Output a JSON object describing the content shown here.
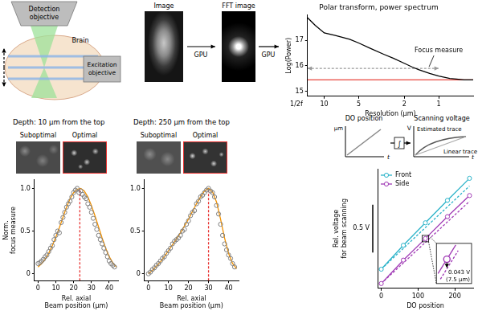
{
  "schematic": {
    "labels": [
      "Detection objective",
      "Brain",
      "Excitation objective"
    ]
  },
  "pipeline": {
    "image_titles": [
      "Image",
      "FFT image"
    ],
    "arrows": [
      "GPU",
      "GPU"
    ]
  },
  "sketch": {
    "left": {
      "title": "DO position",
      "y_label": "µm",
      "x_label": "t"
    },
    "operator": "∫",
    "right": {
      "title": "Scanning voltage",
      "y_label": "V",
      "x_label": "t",
      "traces": [
        "Estimated trace",
        "Linear trace"
      ]
    }
  },
  "chart_data": [
    {
      "type": "line",
      "title": "Polar transform, power spectrum",
      "x_label": "Resolution (µm)",
      "y_label": "Log(Power)",
      "log": "x",
      "grid": false,
      "xlim": [
        14,
        0.5
      ],
      "xticks": [
        10,
        5,
        2,
        1
      ],
      "ylim": [
        14.8,
        18
      ],
      "yticks": [
        15,
        16,
        17
      ],
      "annotations": [
        "1/2f",
        "Focus measure"
      ],
      "series": [
        {
          "color": "#000000",
          "line_style": "solid",
          "marker": "none",
          "x": [
            14,
            12,
            10,
            8,
            6,
            5,
            4,
            3,
            2.5,
            2,
            1.7,
            1.5,
            1.2,
            1,
            0.8,
            0.7,
            0.6,
            0.5
          ],
          "values": [
            17.9,
            17.6,
            17.3,
            17.2,
            17.05,
            16.9,
            16.7,
            16.45,
            16.3,
            16.1,
            15.95,
            15.85,
            15.7,
            15.6,
            15.5,
            15.48,
            15.45,
            15.45
          ]
        },
        {
          "color": "#e8453c",
          "line_style": "solid",
          "marker": "none",
          "x": [
            14,
            0.5
          ],
          "values": [
            15.45,
            15.45
          ]
        },
        {
          "color": "#999999",
          "line_style": "dashed",
          "marker": "arrow",
          "x": [
            14,
            1
          ],
          "values": [
            15.9,
            15.9
          ]
        }
      ]
    },
    {
      "type": "scatter",
      "title": "Depth: 10 µm from the top",
      "image_labels": [
        "Suboptimal",
        "Optimal"
      ],
      "x_label": [
        "Rel. axial",
        "Beam position (µm)"
      ],
      "y_label": [
        "Norm.",
        "focus measure"
      ],
      "grid": false,
      "xlim": [
        -2,
        45
      ],
      "xticks": [
        0,
        10,
        20,
        30,
        40
      ],
      "ylim": [
        -0.08,
        1.1
      ],
      "yticks": [
        0,
        0.5,
        {
          "value": 1,
          "label": "1.0"
        }
      ],
      "series": [
        {
          "color": "#7f7f7f",
          "line_style": "none",
          "marker": "circle",
          "x": [
            0,
            1,
            2,
            3,
            4,
            5,
            6,
            7,
            8,
            9,
            10,
            11,
            12,
            13,
            14,
            15,
            16,
            17,
            18,
            19,
            20,
            21,
            22,
            23,
            24,
            25,
            26,
            27,
            28,
            29,
            30,
            31,
            32,
            33,
            34,
            35,
            36,
            37,
            38,
            39,
            40,
            41,
            42,
            43
          ],
          "values": [
            0.12,
            0.13,
            0.15,
            0.17,
            0.2,
            0.22,
            0.26,
            0.3,
            0.33,
            0.4,
            0.45,
            0.5,
            0.48,
            0.6,
            0.66,
            0.72,
            0.78,
            0.82,
            0.85,
            0.9,
            0.95,
            0.98,
            1.0,
            0.95,
            0.97,
            0.93,
            0.9,
            0.88,
            0.82,
            0.78,
            0.72,
            0.65,
            0.58,
            0.52,
            0.45,
            0.4,
            0.35,
            0.3,
            0.25,
            0.2,
            0.15,
            0.12,
            0.1,
            0.08
          ]
        },
        {
          "color": "#f39200",
          "line_style": "solid",
          "marker": "none",
          "x": [
            0,
            2,
            4,
            6,
            8,
            10,
            12,
            14,
            16,
            18,
            20,
            22,
            24,
            26,
            28,
            30,
            32,
            34,
            36,
            38,
            40,
            42,
            44
          ],
          "values": [
            0.08,
            0.12,
            0.17,
            0.24,
            0.33,
            0.43,
            0.54,
            0.66,
            0.78,
            0.88,
            0.95,
            0.99,
            1.0,
            0.97,
            0.9,
            0.8,
            0.68,
            0.55,
            0.42,
            0.3,
            0.2,
            0.13,
            0.08
          ]
        },
        {
          "color": "#e8312f",
          "line_style": "dashed",
          "marker": "none",
          "x": [
            23.5,
            23.5
          ],
          "values": [
            -0.08,
            1.0
          ]
        }
      ]
    },
    {
      "type": "scatter",
      "title": "Depth: 250 µm from the top",
      "image_labels": [
        "Suboptimal",
        "Optimal"
      ],
      "x_label": [
        "Rel. axial",
        "Beam position (µm)"
      ],
      "grid": false,
      "xlim": [
        -2,
        45
      ],
      "xticks": [
        0,
        10,
        20,
        30,
        40
      ],
      "ylim": [
        -0.08,
        1.1
      ],
      "yticks": [
        0,
        0.5,
        {
          "value": 1,
          "label": "1.0"
        }
      ],
      "series": [
        {
          "color": "#7f7f7f",
          "line_style": "none",
          "marker": "circle",
          "x": [
            0,
            1,
            2,
            3,
            4,
            5,
            6,
            7,
            8,
            9,
            10,
            11,
            12,
            13,
            14,
            15,
            16,
            17,
            18,
            19,
            20,
            21,
            22,
            23,
            24,
            25,
            26,
            27,
            28,
            29,
            30,
            31,
            32,
            33,
            34,
            35,
            36,
            37,
            38,
            39,
            40,
            41,
            42,
            43
          ],
          "values": [
            0.0,
            0.02,
            0.05,
            0.07,
            0.1,
            0.12,
            0.15,
            0.18,
            0.2,
            0.24,
            0.27,
            0.3,
            0.35,
            0.38,
            0.4,
            0.42,
            0.45,
            0.5,
            0.52,
            0.58,
            0.62,
            0.68,
            0.72,
            0.74,
            0.82,
            0.85,
            0.9,
            0.92,
            0.95,
            0.98,
            1.0,
            0.97,
            0.95,
            0.9,
            0.8,
            0.7,
            0.58,
            0.45,
            0.35,
            0.28,
            0.22,
            0.18,
            0.12,
            0.08
          ]
        },
        {
          "color": "#f39200",
          "line_style": "solid",
          "marker": "none",
          "x": [
            0,
            2,
            4,
            6,
            8,
            10,
            12,
            14,
            16,
            18,
            20,
            22,
            24,
            26,
            28,
            30,
            32,
            34,
            36,
            38,
            40,
            42,
            44
          ],
          "values": [
            0.0,
            0.04,
            0.09,
            0.14,
            0.2,
            0.27,
            0.34,
            0.41,
            0.48,
            0.56,
            0.64,
            0.73,
            0.82,
            0.9,
            0.97,
            1.0,
            0.96,
            0.84,
            0.64,
            0.42,
            0.24,
            0.12,
            0.06
          ]
        },
        {
          "color": "#e8312f",
          "line_style": "dashed",
          "marker": "none",
          "x": [
            30,
            30
          ],
          "values": [
            -0.08,
            1.0
          ]
        }
      ]
    },
    {
      "type": "line",
      "x_label": "DO position",
      "y_label": [
        "Rel. voltage",
        "for beam scanning"
      ],
      "grid": false,
      "legend": "top-left",
      "tick_labels": "x",
      "xlim": [
        -10,
        250
      ],
      "xticks": [
        0,
        100,
        200
      ],
      "ylim": [
        -0.05,
        1.2
      ],
      "scale_bar": {
        "value": 0.5,
        "label": "0.5 V"
      },
      "inset": {
        "x": 120,
        "series": "Side",
        "labels": [
          "0.043 V",
          "(7.5 µm)"
        ]
      },
      "series": [
        {
          "name": "Front",
          "color": "#2bb3c9",
          "line_style": "solid",
          "marker": "circle",
          "x": [
            0,
            60,
            120,
            180,
            240
          ],
          "values": [
            0.15,
            0.4,
            0.635,
            0.87,
            1.1
          ]
        },
        {
          "color": "#2bb3c9",
          "line_style": "dashed",
          "marker": "none",
          "x": [
            0,
            240
          ],
          "values": [
            0.15,
            1.02
          ]
        },
        {
          "name": "Side",
          "color": "#a03ab5",
          "line_style": "solid",
          "marker": "circle",
          "x": [
            0,
            60,
            120,
            180,
            240
          ],
          "values": [
            0.0,
            0.245,
            0.47,
            0.7,
            0.92
          ]
        },
        {
          "color": "#a03ab5",
          "line_style": "dashed",
          "marker": "none",
          "x": [
            0,
            240
          ],
          "values": [
            0.0,
            0.86
          ]
        }
      ]
    }
  ]
}
